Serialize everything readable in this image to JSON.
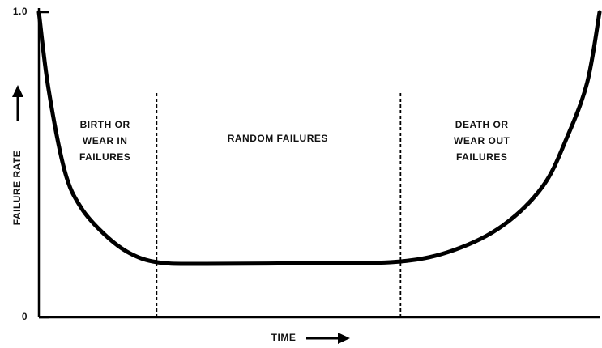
{
  "chart_data": {
    "type": "line",
    "ylabel": "FAILURE RATE",
    "xlabel": "TIME",
    "x": [
      0,
      1.7,
      4.6,
      7.5,
      11.8,
      16.2,
      21.2,
      29.2,
      50.9,
      64.6,
      74,
      82.7,
      89.9,
      94.2,
      97.8,
      100
    ],
    "values": [
      1.0,
      0.75,
      0.48,
      0.36,
      0.27,
      0.21,
      0.18,
      0.175,
      0.178,
      0.183,
      0.22,
      0.3,
      0.43,
      0.59,
      0.77,
      1.0
    ],
    "color": "#000000",
    "xlim": [
      0,
      100
    ],
    "ylim": [
      0,
      1
    ],
    "yticks": [
      0,
      {
        "value": 1,
        "label": "1.0"
      }
    ],
    "vlines": [
      21,
      64.5
    ],
    "annotations": [
      {
        "lines": [
          "BIRTH OR",
          "WEAR IN",
          "FAILURES"
        ],
        "x": 11.8
      },
      {
        "lines": [
          "RANDOM FAILURES"
        ],
        "x": 42.6
      },
      {
        "lines": [
          "DEATH OR",
          "WEAR OUT",
          "FAILURES"
        ],
        "x": 79
      }
    ]
  }
}
